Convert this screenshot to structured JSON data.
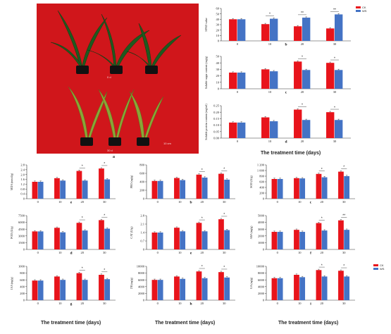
{
  "colors": {
    "ck": "#e8141b",
    "ws": "#4473c5",
    "photo_bg": "#d0161b"
  },
  "figure": {
    "photo": {
      "letter": "a",
      "label_top": "0 d",
      "label_bottom": "30 d",
      "scale_label": "10 cm"
    },
    "top_xtitle": "The treatment time (days)",
    "bottom_xtitle_left": "The treatment time (days)",
    "bottom_xtitle_mid": "The treatment time (days)",
    "bottom_xtitle_right": "The treatment time (days)",
    "legend_top": {
      "ck": "CK",
      "ws": "WS"
    },
    "legend_bottom": {
      "ck": "CK",
      "ws": "WS"
    }
  },
  "chart_data": [
    {
      "id": "spad",
      "letter": "b",
      "type": "bar",
      "ylabel": "SPAD value",
      "ylim": [
        0,
        60
      ],
      "yticks": [
        "0",
        "10",
        "20",
        "30",
        "40",
        "50",
        "60"
      ],
      "categories": [
        "0",
        "10",
        "20",
        "30"
      ],
      "series": [
        {
          "name": "CK",
          "values": [
            40,
            31,
            27,
            23
          ]
        },
        {
          "name": "WS",
          "values": [
            40,
            41,
            43,
            49
          ]
        }
      ],
      "sig": [
        "",
        "*",
        "**",
        "**"
      ]
    },
    {
      "id": "sugar",
      "letter": "c",
      "type": "bar",
      "ylabel": "Soluble sugar content (mg/g)",
      "ylim": [
        0,
        50
      ],
      "yticks": [
        "0",
        "10",
        "20",
        "30",
        "40",
        "50"
      ],
      "categories": [
        "0",
        "10",
        "20",
        "30"
      ],
      "series": [
        {
          "name": "CK",
          "values": [
            25,
            30,
            42,
            40
          ]
        },
        {
          "name": "WS",
          "values": [
            25,
            27,
            29,
            29
          ]
        }
      ],
      "sig": [
        "",
        "",
        "*",
        "*"
      ]
    },
    {
      "id": "protein",
      "letter": "d",
      "type": "bar",
      "ylabel": "Soluble protein content (mg/ml)",
      "ylim": [
        0,
        0.25
      ],
      "yticks": [
        "0.00",
        "0.05",
        "0.10",
        "0.15",
        "0.20",
        "0.25"
      ],
      "categories": [
        "0",
        "10",
        "20",
        "30"
      ],
      "series": [
        {
          "name": "CK",
          "values": [
            0.12,
            0.16,
            0.22,
            0.2
          ]
        },
        {
          "name": "WS",
          "values": [
            0.12,
            0.13,
            0.14,
            0.14
          ]
        }
      ],
      "sig": [
        "",
        "",
        "*",
        "*"
      ]
    },
    {
      "id": "mda",
      "letter": "e",
      "type": "bar",
      "ylabel": "MDA (nmol/g)",
      "ylim": [
        0,
        2.8
      ],
      "yticks": [
        "0",
        "0.4",
        "0.8",
        "1.2",
        "1.6",
        "2.0",
        "2.4",
        "2.8"
      ],
      "categories": [
        "0",
        "10",
        "20",
        "30"
      ],
      "series": [
        {
          "name": "CK",
          "values": [
            1.4,
            1.7,
            2.3,
            2.5
          ]
        },
        {
          "name": "WS",
          "values": [
            1.4,
            1.5,
            1.5,
            1.6
          ]
        }
      ],
      "sig": [
        "",
        "",
        "*",
        "*"
      ]
    },
    {
      "id": "pro",
      "letter": "b",
      "type": "bar",
      "ylabel": "PRO (ug/g)",
      "ylim": [
        0,
        800
      ],
      "yticks": [
        "0",
        "200",
        "400",
        "600",
        "800"
      ],
      "categories": [
        "0",
        "10",
        "20",
        "30"
      ],
      "series": [
        {
          "name": "CK",
          "values": [
            420,
            490,
            570,
            590
          ]
        },
        {
          "name": "WS",
          "values": [
            420,
            440,
            500,
            450
          ]
        }
      ],
      "sig": [
        "",
        "",
        "*",
        "*"
      ]
    },
    {
      "id": "sod",
      "letter": "c",
      "type": "bar",
      "ylabel": "SOD (U/g)",
      "ylim": [
        0,
        1200
      ],
      "yticks": [
        "0",
        "200",
        "400",
        "600",
        "800",
        "1 000",
        "1 200"
      ],
      "categories": [
        "0",
        "10",
        "20",
        "30"
      ],
      "series": [
        {
          "name": "CK",
          "values": [
            700,
            730,
            880,
            960
          ]
        },
        {
          "name": "WS",
          "values": [
            700,
            720,
            760,
            800
          ]
        }
      ],
      "sig": [
        "",
        "",
        "*",
        "*"
      ]
    },
    {
      "id": "pod",
      "letter": "d",
      "type": "bar",
      "ylabel": "POD (U/g)",
      "ylim": [
        0,
        7500
      ],
      "yticks": [
        "0",
        "1500",
        "3000",
        "4500",
        "6000",
        "7500"
      ],
      "categories": [
        "0",
        "10",
        "20",
        "30"
      ],
      "series": [
        {
          "name": "CK",
          "values": [
            4000,
            4800,
            5900,
            6500
          ]
        },
        {
          "name": "WS",
          "values": [
            4000,
            3800,
            4200,
            4600
          ]
        }
      ],
      "sig": [
        "",
        "",
        "*",
        "*"
      ]
    },
    {
      "id": "cat",
      "letter": "e",
      "type": "bar",
      "ylabel": "CAT (U/g)",
      "ylim": [
        0,
        2.8
      ],
      "yticks": [
        "0",
        "0.7",
        "1.4",
        "2.1",
        "2.8"
      ],
      "categories": [
        "0",
        "10",
        "20",
        "30"
      ],
      "series": [
        {
          "name": "CK",
          "values": [
            1.4,
            1.8,
            2.2,
            2.5
          ]
        },
        {
          "name": "WS",
          "values": [
            1.4,
            1.5,
            1.5,
            1.6
          ]
        }
      ],
      "sig": [
        "",
        "",
        "*",
        "*"
      ]
    },
    {
      "id": "aba",
      "letter": "f",
      "type": "bar",
      "ylabel": "ABA (ng/g)",
      "ylim": [
        0,
        5000
      ],
      "yticks": [
        "0",
        "1000",
        "2000",
        "3000",
        "4000",
        "5000"
      ],
      "categories": [
        "0",
        "10",
        "20",
        "30"
      ],
      "series": [
        {
          "name": "CK",
          "values": [
            2600,
            2900,
            3900,
            4300
          ]
        },
        {
          "name": "WS",
          "values": [
            2600,
            2600,
            2800,
            2900
          ]
        }
      ],
      "sig": [
        "",
        "",
        "*",
        "**"
      ]
    },
    {
      "id": "iaa",
      "letter": "g",
      "type": "bar",
      "ylabel": "IAA (ng/g)",
      "ylim": [
        0,
        1000
      ],
      "yticks": [
        "0",
        "200",
        "400",
        "600",
        "800",
        "1000"
      ],
      "categories": [
        "0",
        "10",
        "20",
        "30"
      ],
      "series": [
        {
          "name": "CK",
          "values": [
            580,
            700,
            800,
            750
          ]
        },
        {
          "name": "WS",
          "values": [
            580,
            600,
            600,
            620
          ]
        }
      ],
      "sig": [
        "",
        "",
        "*",
        "*"
      ]
    },
    {
      "id": "zr",
      "letter": "h",
      "type": "bar",
      "ylabel": "ZR (ng/g)",
      "ylim": [
        0,
        10000
      ],
      "yticks": [
        "0",
        "2000",
        "4000",
        "6000",
        "8000",
        "10000"
      ],
      "categories": [
        "0",
        "10",
        "20",
        "30"
      ],
      "series": [
        {
          "name": "CK",
          "values": [
            6000,
            7000,
            8500,
            8300
          ]
        },
        {
          "name": "WS",
          "values": [
            6000,
            6300,
            6500,
            6700
          ]
        }
      ],
      "sig": [
        "",
        "",
        "*",
        "*"
      ]
    },
    {
      "id": "ga",
      "letter": "i",
      "type": "bar",
      "ylabel": "GA (ng/g)",
      "ylim": [
        0,
        10000
      ],
      "yticks": [
        "0",
        "2000",
        "4000",
        "6000",
        "8000",
        "10000"
      ],
      "categories": [
        "0",
        "10",
        "20",
        "30"
      ],
      "series": [
        {
          "name": "CK",
          "values": [
            6500,
            7500,
            8900,
            8700
          ]
        },
        {
          "name": "WS",
          "values": [
            6500,
            6800,
            7000,
            7000
          ]
        }
      ],
      "sig": [
        "",
        "",
        "*",
        "*"
      ]
    }
  ]
}
